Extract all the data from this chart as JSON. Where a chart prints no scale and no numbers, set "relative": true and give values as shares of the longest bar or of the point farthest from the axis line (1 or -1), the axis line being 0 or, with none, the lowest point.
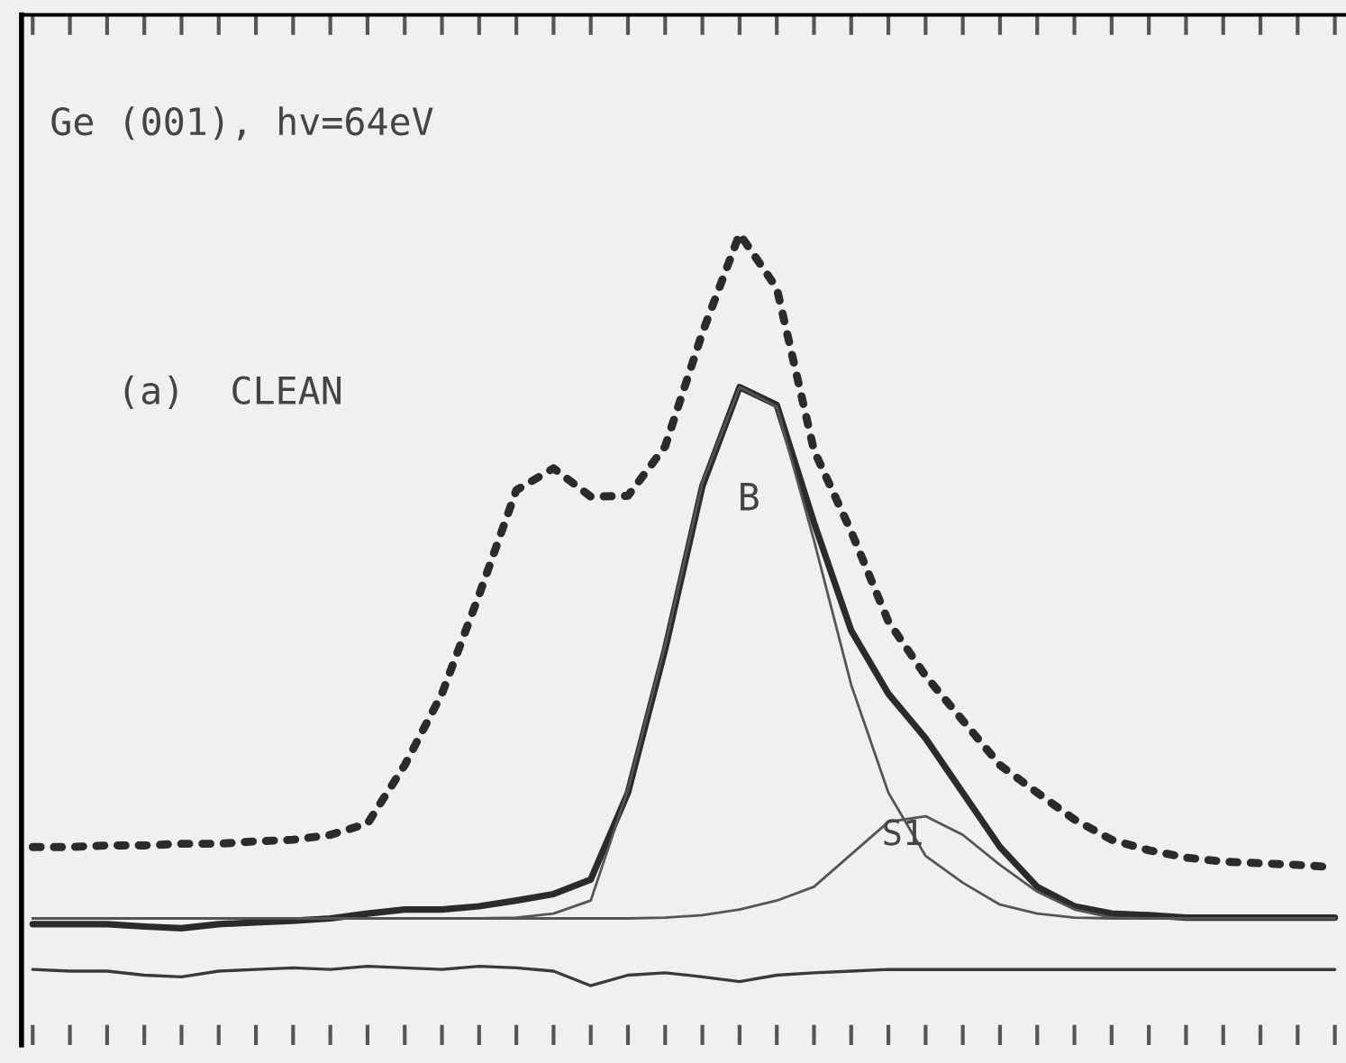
{
  "chart_data": {
    "type": "line",
    "relative": true,
    "grid": false,
    "legend": false,
    "categories": [
      null,
      null,
      null,
      null,
      null,
      null,
      null,
      null,
      null,
      null,
      null,
      null,
      null,
      null,
      null,
      null,
      null,
      null,
      null,
      null,
      null,
      null,
      null,
      null,
      null,
      null,
      null,
      null,
      null,
      null,
      null,
      null,
      null,
      null,
      null,
      null
    ],
    "series": [
      {
        "color": "#2b2b2b",
        "line_style": "dotted",
        "values": [
          0.244,
          0.244,
          0.246,
          0.246,
          0.248,
          0.248,
          0.251,
          0.253,
          0.259,
          0.273,
          0.345,
          0.433,
          0.555,
          0.684,
          0.711,
          0.676,
          0.677,
          0.738,
          0.878,
          1.0,
          0.933,
          0.733,
          0.633,
          0.522,
          0.455,
          0.4,
          0.345,
          0.311,
          0.278,
          0.253,
          0.24,
          0.231,
          0.226,
          0.224,
          0.222,
          0.219
        ]
      },
      {
        "color": "#2b2b2b",
        "line_style": "solid",
        "values": [
          0.149,
          0.149,
          0.149,
          0.146,
          0.144,
          0.149,
          0.151,
          0.153,
          0.156,
          0.162,
          0.167,
          0.167,
          0.171,
          0.178,
          0.186,
          0.204,
          0.311,
          0.488,
          0.689,
          0.811,
          0.789,
          0.644,
          0.511,
          0.433,
          0.378,
          0.311,
          0.244,
          0.195,
          0.171,
          0.162,
          0.16,
          0.157,
          0.157,
          0.157,
          0.157,
          0.157
        ]
      },
      {
        "color": "#555555",
        "line_style": "solid",
        "values": [
          0.156,
          0.156,
          0.156,
          0.156,
          0.156,
          0.156,
          0.156,
          0.156,
          0.156,
          0.156,
          0.156,
          0.156,
          0.156,
          0.157,
          0.162,
          0.178,
          0.315,
          0.493,
          0.693,
          0.811,
          0.787,
          0.622,
          0.444,
          0.311,
          0.233,
          0.2,
          0.173,
          0.162,
          0.157,
          0.156,
          0.156,
          0.156,
          0.156,
          0.156,
          0.156,
          0.156
        ]
      },
      {
        "color": "#555555",
        "line_style": "solid",
        "values": [
          0.156,
          0.156,
          0.156,
          0.156,
          0.156,
          0.156,
          0.156,
          0.156,
          0.156,
          0.156,
          0.156,
          0.156,
          0.156,
          0.156,
          0.156,
          0.156,
          0.156,
          0.157,
          0.16,
          0.167,
          0.178,
          0.195,
          0.235,
          0.275,
          0.282,
          0.259,
          0.222,
          0.189,
          0.167,
          0.157,
          0.156,
          0.156,
          0.156,
          0.156,
          0.156,
          0.156
        ]
      },
      {
        "color": "#3a3a3a",
        "line_style": "solid",
        "values": [
          0.093,
          0.091,
          0.091,
          0.086,
          0.084,
          0.091,
          0.093,
          0.095,
          0.093,
          0.097,
          0.095,
          0.093,
          0.097,
          0.095,
          0.091,
          0.073,
          0.086,
          0.089,
          0.084,
          0.078,
          0.086,
          0.089,
          0.091,
          0.093,
          0.093,
          0.093,
          0.093,
          0.093,
          0.093,
          0.093,
          0.093,
          0.093,
          0.093,
          0.093,
          0.093,
          0.093
        ]
      }
    ],
    "annotations": [
      "Ge (001), hv=64eV",
      "(a)  CLEAN",
      "B",
      "S1"
    ]
  }
}
